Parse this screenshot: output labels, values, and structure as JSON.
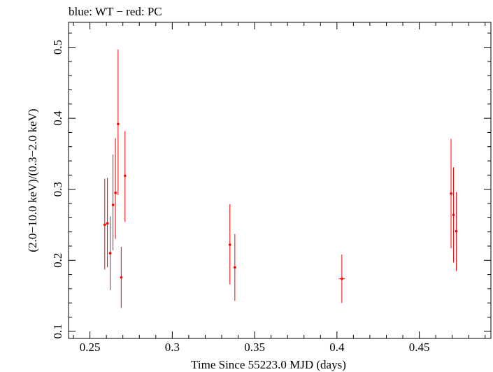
{
  "chart_data": {
    "type": "scatter",
    "title": "blue: WT − red: PC",
    "xlabel": "Time Since 55223.0 MJD (days)",
    "ylabel": "(2.0−10.0 keV)/(0.3−2.0 keV)",
    "xlim": [
      0.237,
      0.4935
    ],
    "ylim": [
      0.09,
      0.535
    ],
    "xticks": [
      0.25,
      0.3,
      0.35,
      0.4,
      0.45
    ],
    "xtick_labels": [
      "0.25",
      "0.3",
      "0.35",
      "0.4",
      "0.45"
    ],
    "yticks": [
      0.1,
      0.2,
      0.3,
      0.4,
      0.5
    ],
    "ytick_labels": [
      "0.1",
      "0.2",
      "0.3",
      "0.4",
      "0.5"
    ],
    "grid": false,
    "series": [
      {
        "color": "#ff0000",
        "points": [
          {
            "x": 0.259,
            "y": 0.25,
            "yerr_low": 0.063,
            "yerr_high": 0.065,
            "xerr": 0.0007
          },
          {
            "x": 0.2606,
            "y": 0.252,
            "yerr_low": 0.062,
            "yerr_high": 0.064,
            "xerr": 0.0007
          },
          {
            "x": 0.2623,
            "y": 0.21,
            "yerr_low": 0.052,
            "yerr_high": 0.052,
            "xerr": 0.0007
          },
          {
            "x": 0.264,
            "y": 0.278,
            "yerr_low": 0.064,
            "yerr_high": 0.071,
            "xerr": 0.0007
          },
          {
            "x": 0.2655,
            "y": 0.295,
            "yerr_low": 0.065,
            "yerr_high": 0.077,
            "xerr": 0.0007
          },
          {
            "x": 0.2671,
            "y": 0.392,
            "yerr_low": 0.1,
            "yerr_high": 0.105,
            "xerr": 0.0007
          },
          {
            "x": 0.269,
            "y": 0.176,
            "yerr_low": 0.043,
            "yerr_high": 0.043,
            "xerr": 0.0007
          },
          {
            "x": 0.2713,
            "y": 0.319,
            "yerr_low": 0.065,
            "yerr_high": 0.063,
            "xerr": 0.0007
          },
          {
            "x": 0.335,
            "y": 0.222,
            "yerr_low": 0.056,
            "yerr_high": 0.057,
            "xerr": 0.0007
          },
          {
            "x": 0.338,
            "y": 0.19,
            "yerr_low": 0.047,
            "yerr_high": 0.047,
            "xerr": 0.0007
          },
          {
            "x": 0.403,
            "y": 0.174,
            "yerr_low": 0.034,
            "yerr_high": 0.034,
            "xerr": 0.0019
          },
          {
            "x": 0.4693,
            "y": 0.294,
            "yerr_low": 0.077,
            "yerr_high": 0.077,
            "xerr": 0.0006
          },
          {
            "x": 0.4708,
            "y": 0.264,
            "yerr_low": 0.067,
            "yerr_high": 0.067,
            "xerr": 0.0006
          },
          {
            "x": 0.4725,
            "y": 0.241,
            "yerr_low": 0.056,
            "yerr_high": 0.055,
            "xerr": 0.0006
          }
        ]
      }
    ]
  }
}
